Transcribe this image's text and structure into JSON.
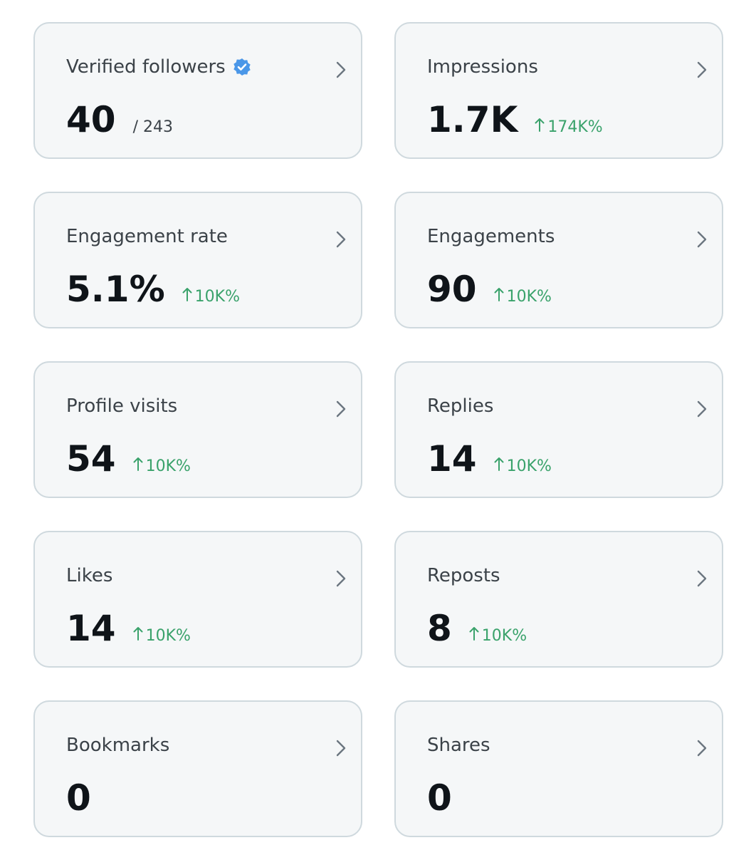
{
  "cards": [
    {
      "label": "Verified followers",
      "verified": true,
      "value": "40",
      "total": "/ 243"
    },
    {
      "label": "Impressions",
      "value": "1.7K",
      "change": "174K%"
    },
    {
      "label": "Engagement rate",
      "value": "5.1%",
      "change": "10K%"
    },
    {
      "label": "Engagements",
      "value": "90",
      "change": "10K%"
    },
    {
      "label": "Profile visits",
      "value": "54",
      "change": "10K%"
    },
    {
      "label": "Replies",
      "value": "14",
      "change": "10K%"
    },
    {
      "label": "Likes",
      "value": "14",
      "change": "10K%"
    },
    {
      "label": "Reposts",
      "value": "8",
      "change": "10K%"
    },
    {
      "label": "Bookmarks",
      "value": "0"
    },
    {
      "label": "Shares",
      "value": "0"
    }
  ]
}
